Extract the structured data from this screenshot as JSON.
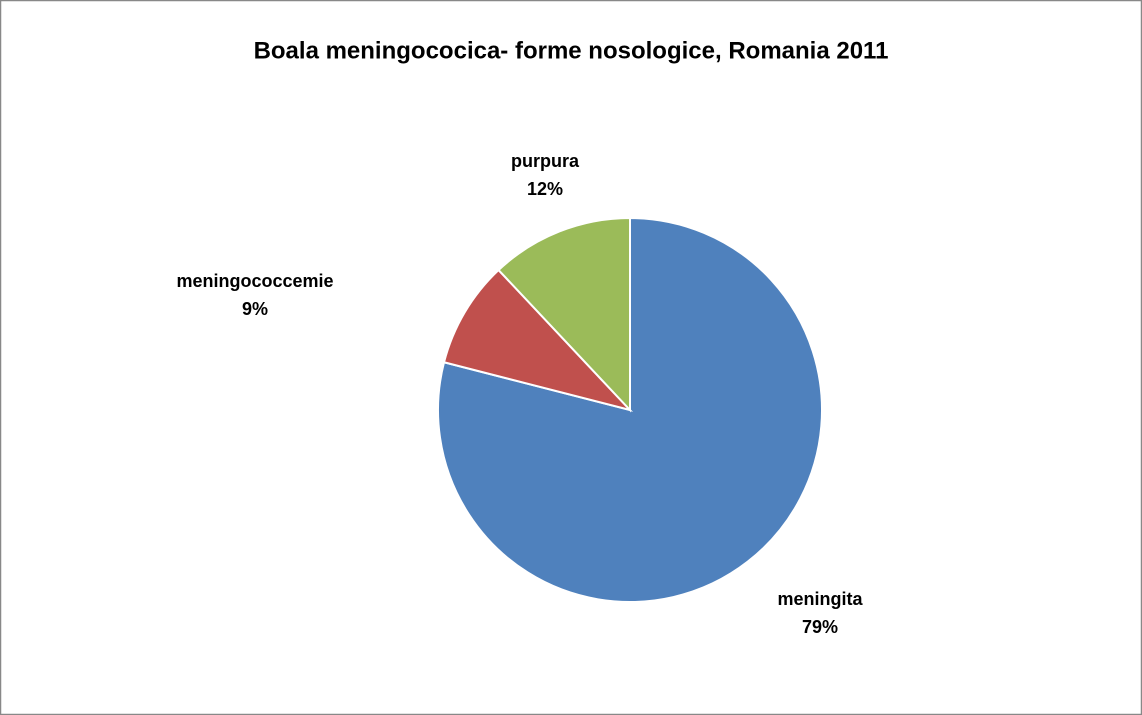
{
  "chart_data": {
    "type": "pie",
    "title": "Boala meningococica- forme nosologice, Romania 2011",
    "categories": [
      "meningita",
      "meningococcemie",
      "purpura"
    ],
    "values": [
      79,
      9,
      12
    ],
    "value_labels": [
      "79%",
      "9%",
      "12%"
    ],
    "colors": [
      "#4f81bd",
      "#c0504d",
      "#9bbb59"
    ]
  }
}
